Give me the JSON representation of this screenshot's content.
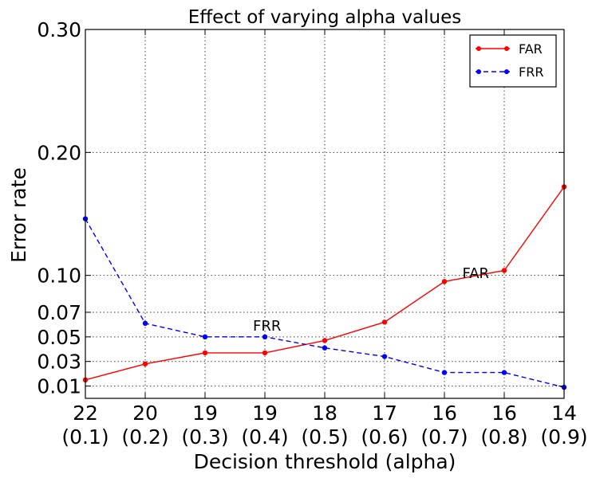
{
  "chart_data": {
    "type": "line",
    "title": "Effect of varying alpha values",
    "xlabel": "Decision threshold (alpha)",
    "ylabel": "Error rate",
    "x": [
      0.1,
      0.2,
      0.3,
      0.4,
      0.5,
      0.6,
      0.7,
      0.8,
      0.9
    ],
    "xlim": [
      0.1,
      0.9
    ],
    "x_tick_labels": [
      [
        "22",
        "(0.1)"
      ],
      [
        "20",
        "(0.2)"
      ],
      [
        "19",
        "(0.3)"
      ],
      [
        "19",
        "(0.4)"
      ],
      [
        "18",
        "(0.5)"
      ],
      [
        "17",
        "(0.6)"
      ],
      [
        "16",
        "(0.7)"
      ],
      [
        "16",
        "(0.8)"
      ],
      [
        "14",
        "(0.9)"
      ]
    ],
    "y_ticks": [
      0.01,
      0.03,
      0.05,
      0.07,
      0.1,
      0.2,
      0.3
    ],
    "y_tick_labels": [
      "0.01",
      "0.03",
      "0.05",
      "0.07",
      "0.10",
      "0.20",
      "0.30"
    ],
    "ylim": [
      0.0,
      0.3
    ],
    "grid": true,
    "legend_position": "top-right",
    "series": [
      {
        "name": "FAR",
        "color": "#ff0000",
        "line_style": "solid",
        "marker": "dot",
        "values": [
          0.015,
          0.028,
          0.037,
          0.037,
          0.047,
          0.062,
          0.095,
          0.104,
          0.172
        ]
      },
      {
        "name": "FRR",
        "color": "#0000ff",
        "line_style": "dashed",
        "marker": "dot",
        "values": [
          0.146,
          0.061,
          0.05,
          0.05,
          0.041,
          0.034,
          0.021,
          0.021,
          0.009
        ]
      }
    ],
    "annotations": [
      {
        "text": "FRR",
        "x": 0.38,
        "y": 0.055
      },
      {
        "text": "FAR",
        "x": 0.73,
        "y": 0.098
      }
    ]
  }
}
